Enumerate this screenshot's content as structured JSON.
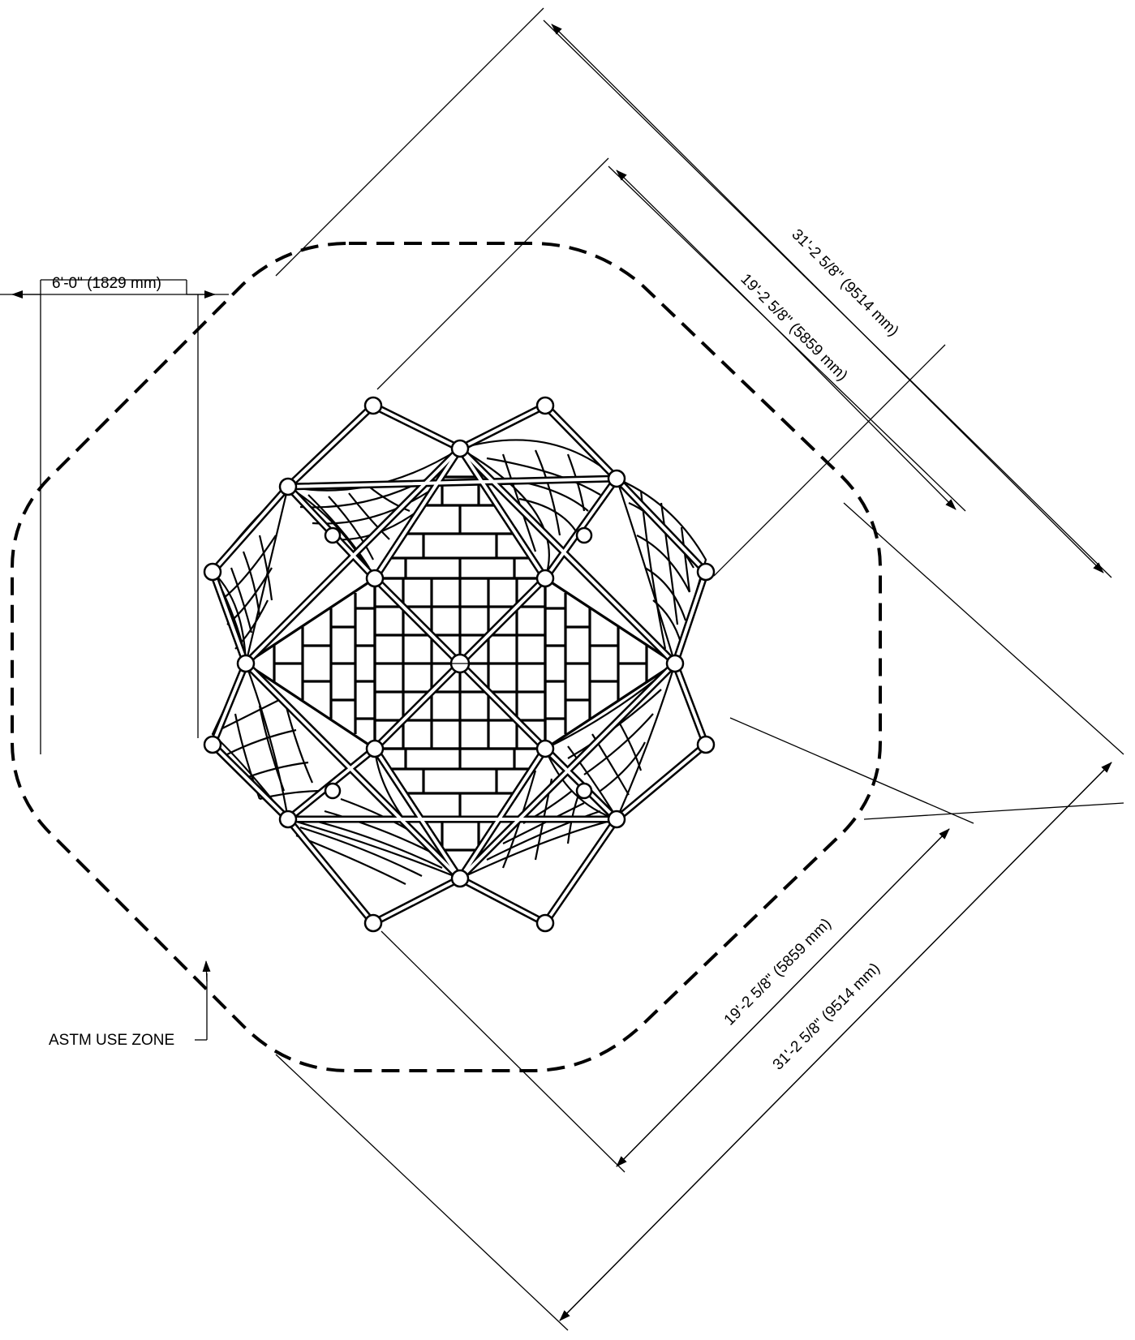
{
  "labels": {
    "width_6ft": "6'-0\" (1829 mm)",
    "outer_dim_top": "31'-2 5/8\" (9514 mm)",
    "inner_dim_top": "19'-2 5/8\" (5859 mm)",
    "inner_dim_bottom": "19'-2 5/8\" (5859 mm)",
    "outer_dim_bottom": "31'-2 5/8\" (9514 mm)",
    "use_zone": "ASTM USE ZONE"
  },
  "colors": {
    "line": "#000000",
    "background": "#ffffff"
  }
}
